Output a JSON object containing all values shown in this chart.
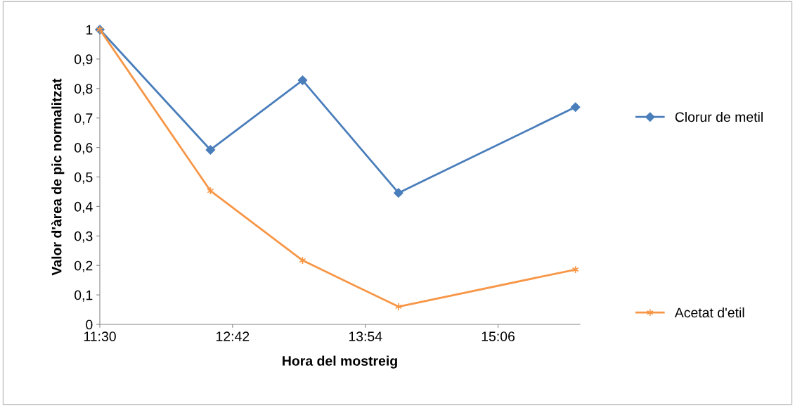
{
  "chart_data": {
    "type": "line",
    "xlabel": "Hora del mostreig",
    "ylabel": "Valor d'àrea de pic normalitzat",
    "x": [
      11.5,
      12.5,
      13.333,
      14.2,
      15.8
    ],
    "series": [
      {
        "name": "Clorur de metil",
        "color": "#4a7ebb",
        "marker": "diamond",
        "values": [
          1,
          0.592,
          0.828,
          0.446,
          0.737
        ]
      },
      {
        "name": "Acetat d'etil",
        "color": "#f79646",
        "marker": "cross",
        "values": [
          1,
          0.453,
          0.217,
          0.06,
          0.186
        ]
      }
    ],
    "xlim": [
      11.5,
      15.84
    ],
    "xticks": [
      {
        "value": 11.5,
        "label": "11:30"
      },
      {
        "value": 12.7,
        "label": "12:42"
      },
      {
        "value": 13.9,
        "label": "13:54"
      },
      {
        "value": 15.1,
        "label": "15:06"
      }
    ],
    "ylim": [
      0,
      1
    ],
    "yticks": [
      0,
      {
        "value": 0.1,
        "label": "0,1"
      },
      {
        "value": 0.2,
        "label": "0,2"
      },
      {
        "value": 0.3,
        "label": "0,3"
      },
      {
        "value": 0.4,
        "label": "0,4"
      },
      {
        "value": 0.5,
        "label": "0,5"
      },
      {
        "value": 0.6,
        "label": "0,6"
      },
      {
        "value": 0.7,
        "label": "0,7"
      },
      {
        "value": 0.8,
        "label": "0,8"
      },
      {
        "value": 0.9,
        "label": "0,9"
      },
      1
    ],
    "grid": false,
    "legend": "right",
    "line_style": "solid"
  }
}
